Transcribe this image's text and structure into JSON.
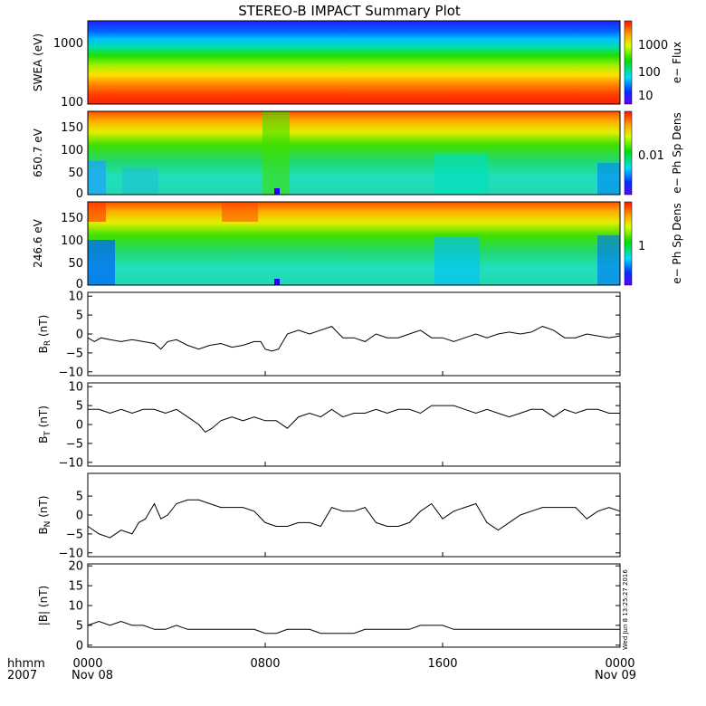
{
  "title": "STEREO-B IMPACT Summary Plot",
  "chart_data": {
    "type": "line",
    "x_axis": {
      "ticks": [
        "0000",
        "0800",
        "1600",
        "0000"
      ],
      "dates": [
        "Nov 08",
        "",
        "",
        "Nov 09"
      ],
      "label_time": "hhmm",
      "label_year": "2007",
      "range_hours": [
        0,
        24
      ]
    },
    "spectrograms": [
      {
        "id": "swea",
        "type": "heatmap",
        "ylabel": "SWEA (eV)",
        "yscale": "log",
        "ylim": [
          95,
          2000
        ],
        "yticks": [
          "1000",
          "100"
        ],
        "colorbar_label": "e− Flux",
        "colorbar_scale": "log",
        "colorbar_ticks": [
          "1000",
          "100",
          "10"
        ]
      },
      {
        "id": "pad650",
        "type": "heatmap",
        "ylabel": "650.7 eV",
        "ylim": [
          0,
          180
        ],
        "yticks": [
          "150",
          "100",
          "50",
          "0"
        ],
        "colorbar_label": "e− Ph Sp Dens",
        "colorbar_ticks": [
          "0.01"
        ]
      },
      {
        "id": "pad246",
        "type": "heatmap",
        "ylabel": "246.6 eV",
        "ylim": [
          0,
          180
        ],
        "yticks": [
          "150",
          "100",
          "50",
          "0"
        ],
        "colorbar_label": "e− Ph Sp Dens",
        "colorbar_ticks": [
          "1"
        ]
      }
    ],
    "line_panels": [
      {
        "id": "br",
        "ylabel_main": "B",
        "ylabel_sub": "R",
        "ylabel_unit": " (nT)",
        "ylim": [
          -11,
          11
        ],
        "yticks": [
          "10",
          "5",
          "0",
          "−5",
          "−10"
        ],
        "x": [
          0,
          0.3,
          0.6,
          1,
          1.5,
          2,
          2.5,
          3,
          3.3,
          3.6,
          4,
          4.5,
          5,
          5.5,
          6,
          6.5,
          7,
          7.5,
          7.8,
          8,
          8.3,
          8.6,
          9,
          9.5,
          10,
          10.5,
          11,
          11.5,
          12,
          12.5,
          13,
          13.5,
          14,
          14.5,
          15,
          15.5,
          16,
          16.5,
          17,
          17.5,
          18,
          18.5,
          19,
          19.5,
          20,
          20.5,
          21,
          21.5,
          22,
          22.5,
          23,
          23.5,
          24
        ],
        "y": [
          -1,
          -2,
          -1,
          -1.5,
          -2,
          -1.5,
          -2,
          -2.5,
          -4,
          -2,
          -1.5,
          -3,
          -4,
          -3,
          -2.5,
          -3.5,
          -3,
          -2,
          -2,
          -4,
          -4.5,
          -4,
          0,
          1,
          0,
          1,
          2,
          -1,
          -1,
          -2,
          0,
          -1,
          -1,
          0,
          1,
          -1,
          -1,
          -2,
          -1,
          0,
          -1,
          0,
          0.5,
          0,
          0.5,
          2,
          1,
          -1,
          -1,
          0,
          -0.5,
          -1,
          -0.5
        ]
      },
      {
        "id": "bt",
        "ylabel_main": "B",
        "ylabel_sub": "T",
        "ylabel_unit": " (nT)",
        "ylim": [
          -11,
          11
        ],
        "yticks": [
          "10",
          "5",
          "0",
          "−5",
          "−10"
        ],
        "x": [
          0,
          0.5,
          1,
          1.5,
          2,
          2.5,
          3,
          3.5,
          4,
          4.5,
          5,
          5.3,
          5.6,
          6,
          6.5,
          7,
          7.5,
          8,
          8.5,
          9,
          9.5,
          10,
          10.5,
          11,
          11.5,
          12,
          12.5,
          13,
          13.5,
          14,
          14.5,
          15,
          15.5,
          16,
          16.5,
          17,
          17.5,
          18,
          18.5,
          19,
          19.5,
          20,
          20.5,
          21,
          21.5,
          22,
          22.5,
          23,
          23.5,
          24
        ],
        "y": [
          4,
          4,
          3,
          4,
          3,
          4,
          4,
          3,
          4,
          2,
          0,
          -2,
          -1,
          1,
          2,
          1,
          2,
          1,
          1,
          -1,
          2,
          3,
          2,
          4,
          2,
          3,
          3,
          4,
          3,
          4,
          4,
          3,
          5,
          5,
          5,
          4,
          3,
          4,
          3,
          2,
          3,
          4,
          4,
          2,
          4,
          3,
          4,
          4,
          3,
          3
        ]
      },
      {
        "id": "bn",
        "ylabel_main": "B",
        "ylabel_sub": "N",
        "ylabel_unit": " (nT)",
        "ylim": [
          -11,
          11
        ],
        "yticks": [
          "5",
          "0",
          "−5",
          "−10"
        ],
        "x": [
          0,
          0.5,
          1,
          1.5,
          2,
          2.3,
          2.6,
          3,
          3.3,
          3.6,
          4,
          4.5,
          5,
          5.5,
          6,
          6.5,
          7,
          7.5,
          8,
          8.5,
          9,
          9.5,
          10,
          10.5,
          11,
          11.5,
          12,
          12.5,
          13,
          13.5,
          14,
          14.5,
          15,
          15.5,
          16,
          16.5,
          17,
          17.5,
          18,
          18.5,
          19,
          19.5,
          20,
          20.5,
          21,
          21.5,
          22,
          22.5,
          23,
          23.5,
          24
        ],
        "y": [
          -3,
          -5,
          -6,
          -4,
          -5,
          -2,
          -1,
          3,
          -1,
          0,
          3,
          4,
          4,
          3,
          2,
          2,
          2,
          1,
          -2,
          -3,
          -3,
          -2,
          -2,
          -3,
          2,
          1,
          1,
          2,
          -2,
          -3,
          -3,
          -2,
          1,
          3,
          -1,
          1,
          2,
          3,
          -2,
          -4,
          -2,
          0,
          1,
          2,
          2,
          2,
          2,
          -1,
          1,
          2,
          1
        ]
      },
      {
        "id": "bmag",
        "ylabel_main": "|B| (nT)",
        "ylabel_sub": "",
        "ylabel_unit": "",
        "ylim": [
          -0.5,
          20.5
        ],
        "yticks": [
          "20",
          "15",
          "10",
          "5",
          "0"
        ],
        "x": [
          0,
          0.5,
          1,
          1.5,
          2,
          2.5,
          3,
          3.5,
          4,
          4.5,
          5,
          5.5,
          6,
          6.5,
          7,
          7.5,
          8,
          8.5,
          9,
          9.5,
          10,
          10.5,
          11,
          11.5,
          12,
          12.5,
          13,
          13.5,
          14,
          14.5,
          15,
          15.5,
          16,
          16.5,
          17,
          17.5,
          18,
          18.5,
          19,
          19.5,
          20,
          20.5,
          21,
          21.5,
          22,
          22.5,
          23,
          23.5,
          24
        ],
        "y": [
          5,
          6,
          5,
          6,
          5,
          5,
          4,
          4,
          5,
          4,
          4,
          4,
          4,
          4,
          4,
          4,
          3,
          3,
          4,
          4,
          4,
          3,
          3,
          3,
          3,
          4,
          4,
          4,
          4,
          4,
          5,
          5,
          5,
          4,
          4,
          4,
          4,
          4,
          4,
          4,
          4,
          4,
          4,
          4,
          4,
          4,
          4,
          4,
          4
        ]
      }
    ],
    "stamp": "Wed Jun 8 13:25:27 2016"
  }
}
